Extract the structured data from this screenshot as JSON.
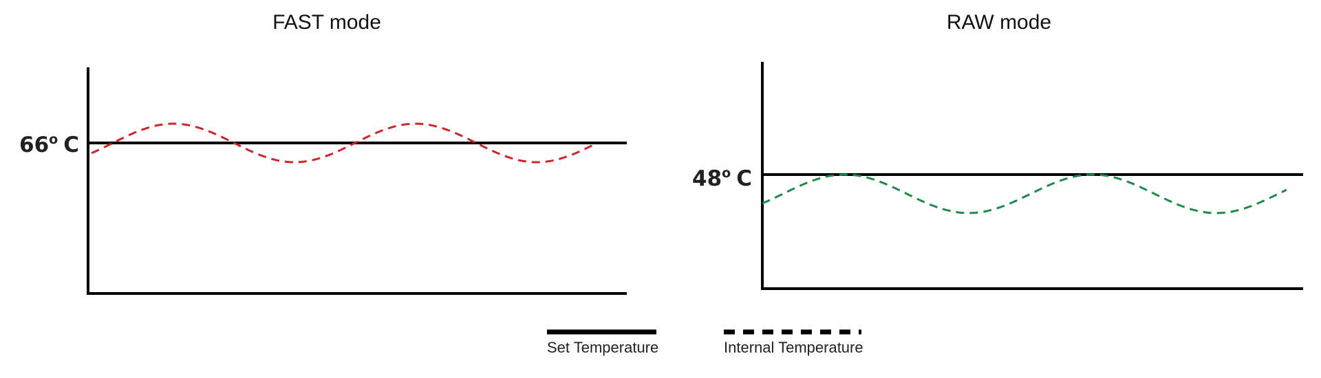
{
  "chart_data": [
    {
      "type": "line",
      "title": "FAST mode",
      "set_temperature": {
        "value": "66",
        "degree": "o",
        "unit": "C"
      },
      "series": [
        {
          "name": "Set Temperature",
          "style": "solid",
          "color": "#000000"
        },
        {
          "name": "Internal Temperature",
          "style": "dashed",
          "color": "#d0242b"
        }
      ]
    },
    {
      "type": "line",
      "title": "RAW mode",
      "set_temperature": {
        "value": "48",
        "degree": "o",
        "unit": "C"
      },
      "series": [
        {
          "name": "Set Temperature",
          "style": "solid",
          "color": "#000000"
        },
        {
          "name": "Internal Temperature",
          "style": "dashed",
          "color": "#1e8a4a"
        }
      ]
    }
  ],
  "legend": [
    {
      "label": "Set Temperature",
      "style": "solid"
    },
    {
      "label": "Internal Temperature",
      "style": "dashed"
    }
  ]
}
